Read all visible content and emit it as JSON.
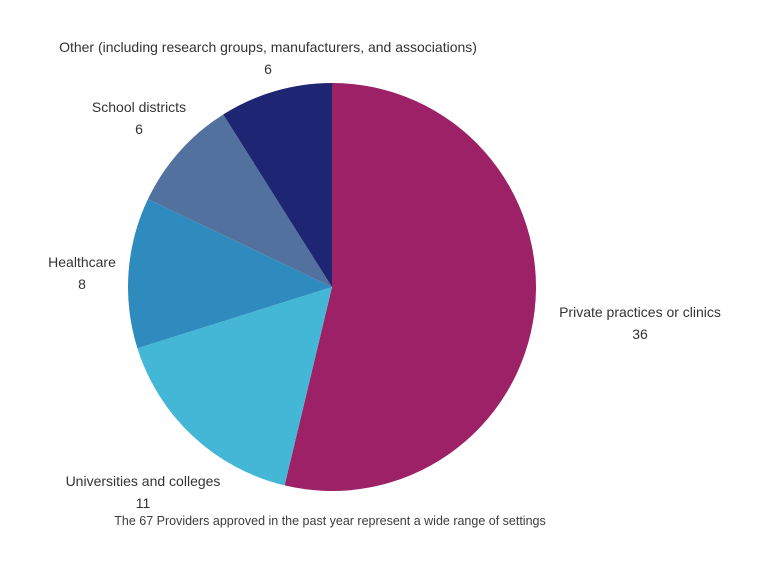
{
  "chart_data": {
    "type": "pie",
    "caption": "The 67 Providers approved in the past year represent a wide range of settings",
    "total": 67,
    "start_angle_deg": 0,
    "direction": "clockwise",
    "legend_position": "labels-around-pie",
    "background_color": "#ffffff",
    "label_text_color": "#333333",
    "slices": [
      {
        "label": "Private practices or clinics",
        "value": 36,
        "color": "#9C2167"
      },
      {
        "label": "Universities and colleges",
        "value": 11,
        "color": "#45B7D6"
      },
      {
        "label": "Healthcare",
        "value": 8,
        "color": "#2F8BBE"
      },
      {
        "label": "School districts",
        "value": 6,
        "color": "#52719F"
      },
      {
        "label": "Other (including research groups, manufacturers, and associations)",
        "value": 6,
        "color": "#1E2573"
      }
    ]
  }
}
